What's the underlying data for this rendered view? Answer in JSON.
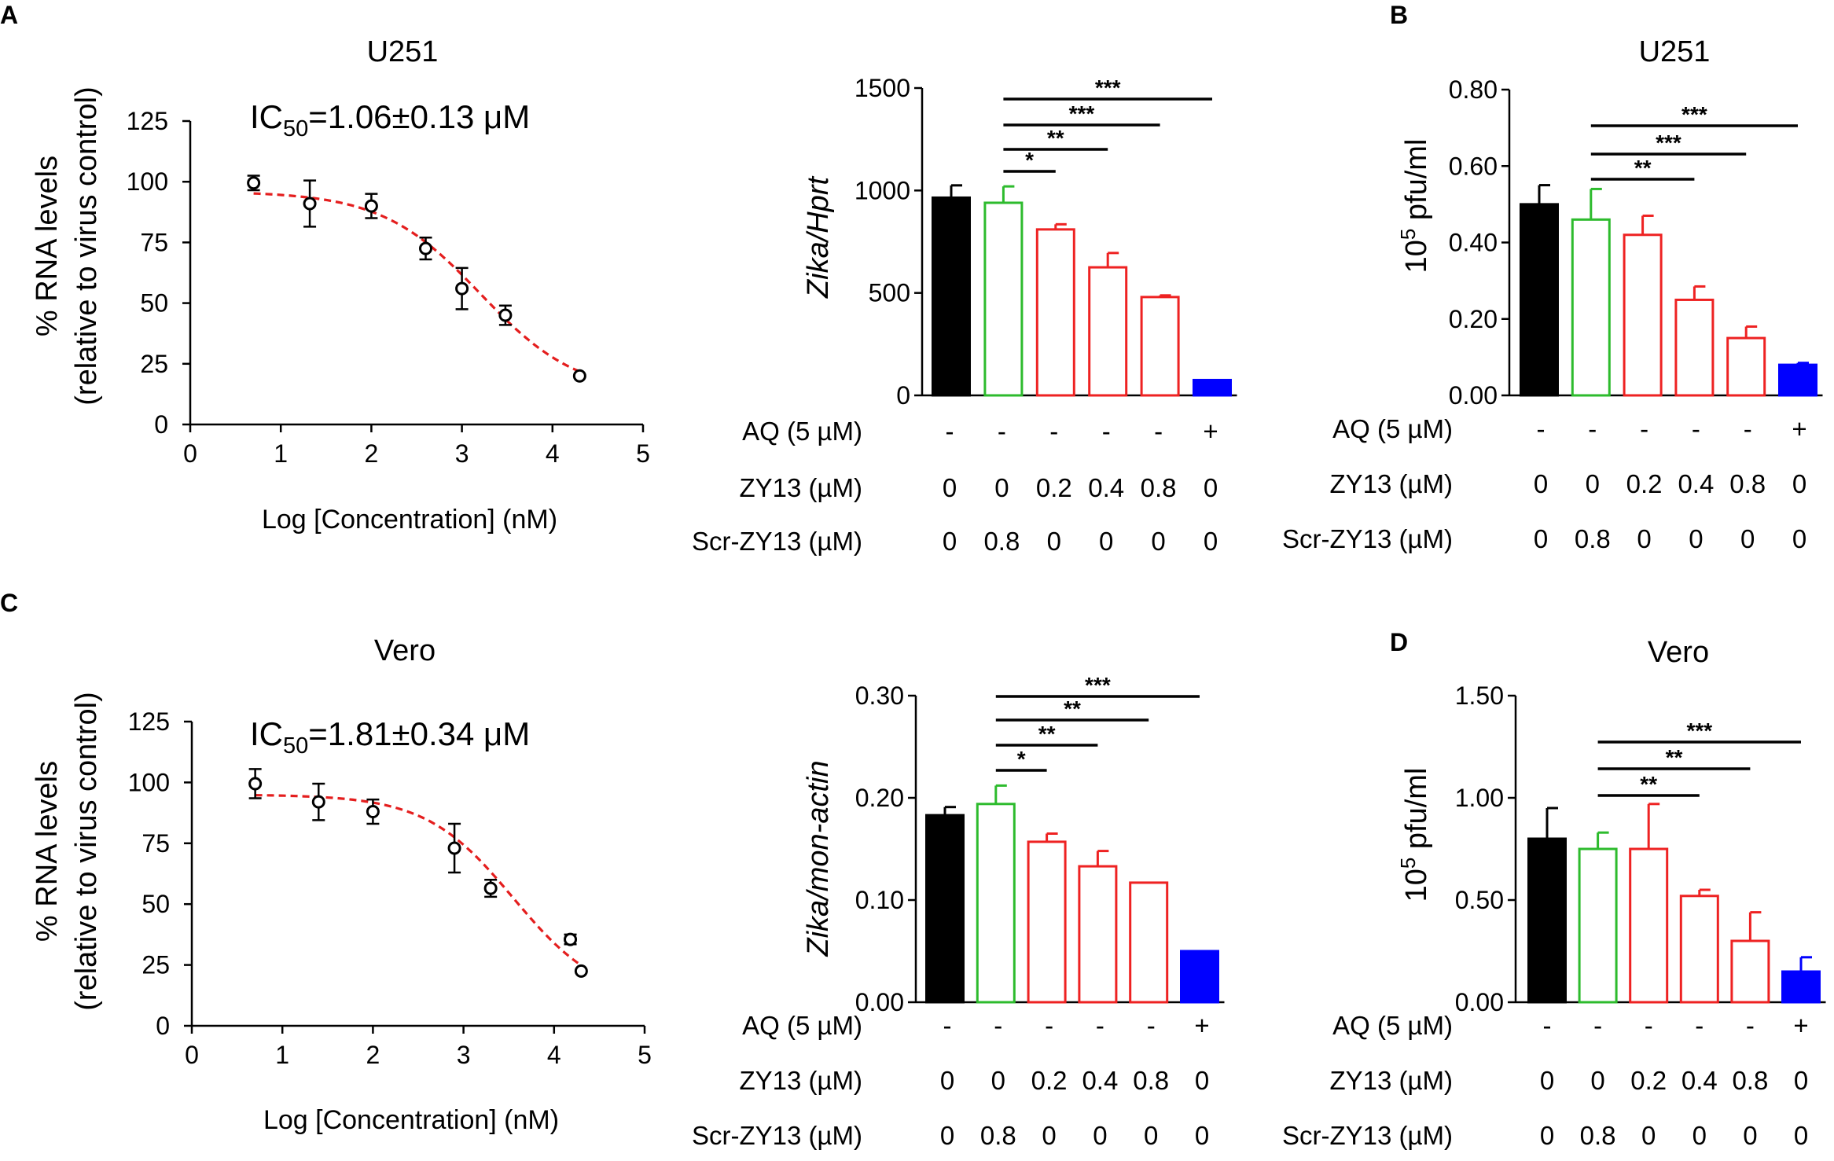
{
  "panels": [
    {
      "id": "A",
      "label": "A"
    },
    {
      "id": "B",
      "label": "B"
    },
    {
      "id": "C",
      "label": "C"
    },
    {
      "id": "D",
      "label": "D"
    }
  ],
  "conditions": {
    "row_labels": [
      "AQ (5 µM)",
      "ZY13 (µM)",
      "Scr-ZY13 (µM)"
    ],
    "aq": [
      "-",
      "-",
      "-",
      "-",
      "-",
      "+"
    ],
    "zy13": [
      "0",
      "0",
      "0.2",
      "0.4",
      "0.8",
      "0"
    ],
    "scr": [
      "0",
      "0.8",
      "0",
      "0",
      "0",
      "0"
    ]
  },
  "colors": {
    "black": "#000000",
    "green": "#2dbb2d",
    "red": "#ee2222",
    "blue": "#0000ff",
    "fit": "#e41e1e"
  },
  "chart_data": [
    {
      "id": "A-curve",
      "type": "scatter",
      "title": "U251",
      "ic50": {
        "prefix": "IC",
        "sub": "50",
        "value": "=1.06±0.13 μM"
      },
      "xlabel": "Log [Concentration] (nM)",
      "ylabel": "% RNA levels",
      "ylabel2": "(relative to virus control)",
      "xlim": [
        0,
        5
      ],
      "ylim": [
        0,
        125
      ],
      "xticks": [
        0,
        1,
        2,
        3,
        4,
        5
      ],
      "yticks": [
        0,
        25,
        50,
        75,
        100,
        125
      ],
      "x": [
        0.7,
        1.32,
        2.0,
        2.6,
        3.0,
        3.48,
        4.3
      ],
      "y": [
        99.5,
        91,
        90,
        72.5,
        56,
        45,
        20
      ],
      "err": [
        3,
        9.5,
        5,
        4.5,
        8.5,
        4,
        1.5
      ],
      "fit": {
        "top": 96,
        "bottom": 12,
        "logIC50": 3.2,
        "hill": 0.8
      }
    },
    {
      "id": "A-bar",
      "type": "bar",
      "ylabel": "Zika/Hprt",
      "ylim": [
        0,
        1500
      ],
      "yticks": [
        0,
        500,
        1000,
        1500
      ],
      "ytick_labels": [
        "0",
        "500",
        "1000",
        "1500"
      ],
      "values": [
        965,
        940,
        810,
        625,
        480,
        75
      ],
      "errors": [
        60,
        80,
        25,
        70,
        8,
        5
      ],
      "sig": [
        {
          "from": 1,
          "to": 2,
          "label": "*"
        },
        {
          "from": 1,
          "to": 3,
          "label": "**"
        },
        {
          "from": 1,
          "to": 4,
          "label": "***"
        },
        {
          "from": 1,
          "to": 5,
          "label": "***"
        }
      ]
    },
    {
      "id": "B-bar",
      "type": "bar",
      "title": "U251",
      "ylabel_pre": "10",
      "ylabel_sup": "5",
      "ylabel_post": " pfu/ml",
      "ylim": [
        0,
        0.8
      ],
      "yticks": [
        0,
        0.2,
        0.4,
        0.6,
        0.8
      ],
      "ytick_labels": [
        "0.00",
        "0.20",
        "0.40",
        "0.60",
        "0.80"
      ],
      "values": [
        0.5,
        0.46,
        0.42,
        0.25,
        0.15,
        0.08
      ],
      "errors": [
        0.05,
        0.08,
        0.05,
        0.035,
        0.03,
        0.005
      ],
      "sig": [
        {
          "from": 1,
          "to": 3,
          "label": "**"
        },
        {
          "from": 1,
          "to": 4,
          "label": "***"
        },
        {
          "from": 1,
          "to": 5,
          "label": "***"
        }
      ]
    },
    {
      "id": "C-curve",
      "type": "scatter",
      "title": "Vero",
      "ic50": {
        "prefix": "IC",
        "sub": "50",
        "value": "=1.81±0.34 μM"
      },
      "xlabel": "Log [Concentration] (nM)",
      "ylabel": "% RNA levels",
      "ylabel2": "(relative to virus control)",
      "xlim": [
        0,
        5
      ],
      "ylim": [
        0,
        125
      ],
      "xticks": [
        0,
        1,
        2,
        3,
        4,
        5
      ],
      "yticks": [
        0,
        25,
        50,
        75,
        100,
        125
      ],
      "x": [
        0.7,
        1.4,
        2.0,
        2.9,
        3.3,
        4.18,
        4.3
      ],
      "y": [
        99.5,
        92,
        88,
        73,
        56.5,
        35.5,
        22.5
      ],
      "err": [
        6,
        7.5,
        5,
        10,
        3.5,
        2,
        1
      ],
      "fit": {
        "top": 95,
        "bottom": 10,
        "logIC50": 3.55,
        "hill": 0.9
      }
    },
    {
      "id": "C-bar",
      "type": "bar",
      "ylabel": "Zika/mon-actin",
      "ylim": [
        0,
        0.3
      ],
      "yticks": [
        0,
        0.1,
        0.2,
        0.3
      ],
      "ytick_labels": [
        "0.00",
        "0.10",
        "0.20",
        "0.30"
      ],
      "values": [
        0.183,
        0.194,
        0.157,
        0.133,
        0.117,
        0.05
      ],
      "errors": [
        0.008,
        0.018,
        0.008,
        0.015,
        0.001,
        0.001
      ],
      "sig": [
        {
          "from": 1,
          "to": 2,
          "label": "*"
        },
        {
          "from": 1,
          "to": 3,
          "label": "**"
        },
        {
          "from": 1,
          "to": 4,
          "label": "**"
        },
        {
          "from": 1,
          "to": 5,
          "label": "***"
        }
      ]
    },
    {
      "id": "D-bar",
      "type": "bar",
      "title": "Vero",
      "ylabel_pre": "10",
      "ylabel_sup": "5",
      "ylabel_post": " pfu/ml",
      "ylim": [
        0,
        1.5
      ],
      "yticks": [
        0,
        0.5,
        1.0,
        1.5
      ],
      "ytick_labels": [
        "0.00",
        "0.50",
        "1.00",
        "1.50"
      ],
      "values": [
        0.8,
        0.75,
        0.75,
        0.52,
        0.3,
        0.15
      ],
      "errors": [
        0.15,
        0.08,
        0.22,
        0.03,
        0.14,
        0.07
      ],
      "sig": [
        {
          "from": 1,
          "to": 3,
          "label": "**"
        },
        {
          "from": 1,
          "to": 4,
          "label": "**"
        },
        {
          "from": 1,
          "to": 5,
          "label": "***"
        }
      ]
    }
  ]
}
